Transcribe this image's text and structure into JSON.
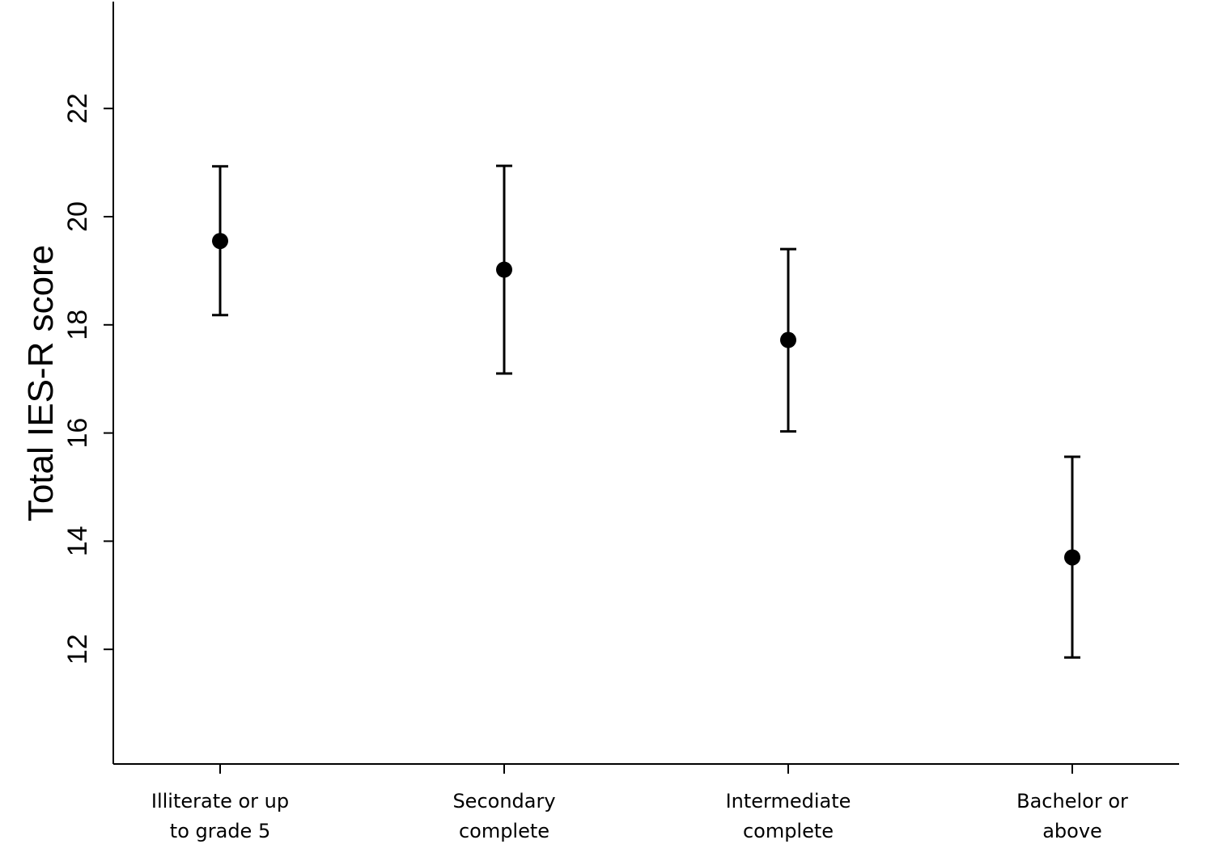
{
  "chart_data": {
    "type": "scatter",
    "title": "",
    "xlabel": "",
    "ylabel": "Total IES-R score",
    "ylim": [
      10,
      24
    ],
    "yticks": [
      12,
      14,
      16,
      18,
      20,
      22
    ],
    "grid": false,
    "legend": "none",
    "categories": [
      [
        "Illiterate or up",
        "to grade 5"
      ],
      [
        "Secondary",
        "complete"
      ],
      [
        "Intermediate",
        "complete"
      ],
      [
        "Bachelor or",
        "above"
      ]
    ],
    "series": [
      {
        "values": [
          19.55,
          19.02,
          17.72,
          13.7
        ],
        "lower": [
          18.18,
          17.1,
          16.03,
          11.85
        ],
        "upper": [
          20.93,
          20.94,
          19.4,
          15.56
        ]
      }
    ]
  }
}
